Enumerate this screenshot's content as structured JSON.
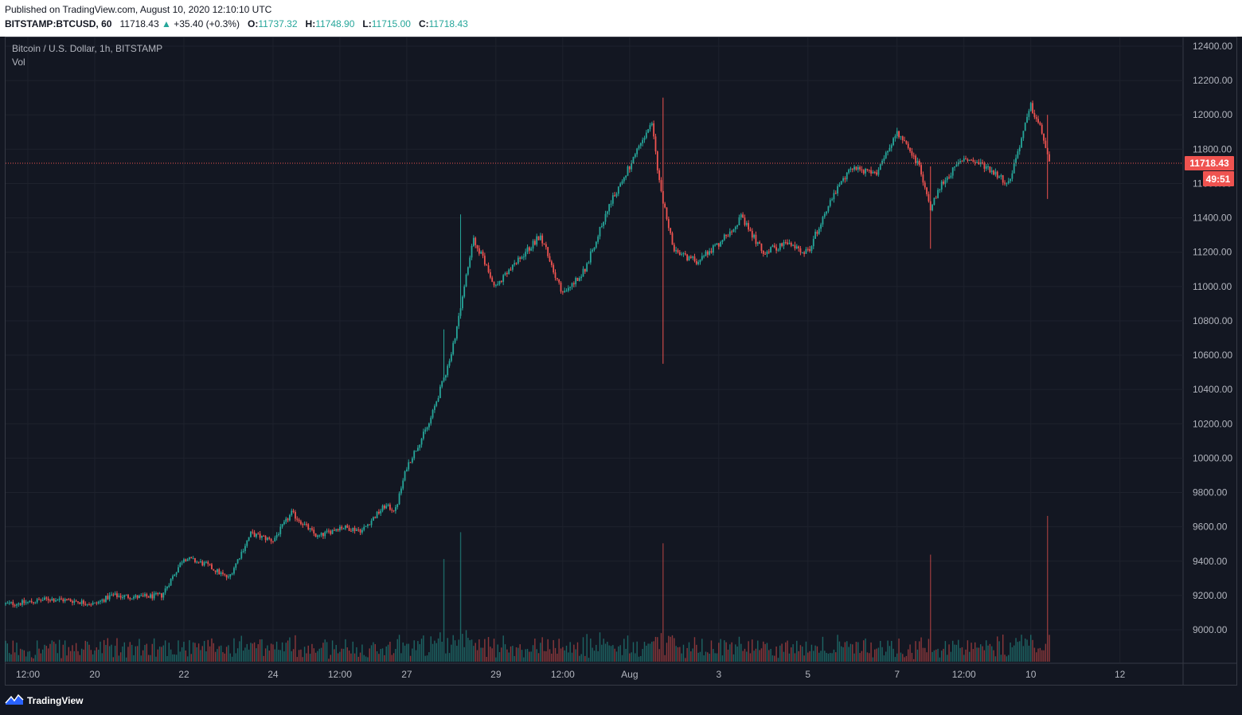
{
  "header": {
    "published": "Published on TradingView.com, August 10, 2020 12:10:10 UTC",
    "symbol_label": "BITSTAMP:BTCUSD, 60",
    "last": "11718.43",
    "change": "+35.40 (+0.3%)",
    "o_label": "O:",
    "o_value": "11737.32",
    "h_label": "H:",
    "h_value": "11748.90",
    "l_label": "L:",
    "l_value": "11715.00",
    "c_label": "C:",
    "c_value": "11718.43"
  },
  "legend": {
    "symbol": "Bitcoin / U.S. Dollar, 1h, BITSTAMP",
    "vol": "Vol"
  },
  "price_badge": "11718.43",
  "countdown_badge": "49:51",
  "footer": {
    "brand": "TradingView"
  },
  "colors": {
    "up": "#26a69a",
    "down": "#ef5350",
    "grid": "#1e222d",
    "background": "#131722",
    "axis_text": "#b2b5be",
    "price_line": "#ef5350"
  },
  "chart_data": {
    "type": "candlestick",
    "title": "Bitcoin / U.S. Dollar, 1h, BITSTAMP",
    "yticks": [
      9000,
      9200,
      9400,
      9600,
      9800,
      10000,
      10200,
      10400,
      10600,
      10800,
      11000,
      11200,
      11400,
      11600,
      11800,
      12000,
      12200,
      12400
    ],
    "ytick_labels": [
      "9000.00",
      "9200.00",
      "9400.00",
      "9600.00",
      "9800.00",
      "10000.00",
      "10200.00",
      "10400.00",
      "10600.00",
      "10800.00",
      "11000.00",
      "11200.00",
      "11400.00",
      "11600.00",
      "11800.00",
      "12000.00",
      "12200.00",
      "12400.00"
    ],
    "ylim": [
      8820,
      12500
    ],
    "xlabels": [
      "12:00",
      "20",
      "22",
      "24",
      "12:00",
      "27",
      "29",
      "12:00",
      "Aug",
      "3",
      "5",
      "7",
      "12:00",
      "10",
      "12"
    ],
    "xlabel_hours": [
      0,
      36,
      84,
      132,
      168,
      204,
      252,
      288,
      324,
      372,
      420,
      468,
      504,
      540,
      588
    ],
    "time_range_hours": [
      -12,
      622
    ],
    "last_price": 11718.43,
    "price_path": [
      [
        -12,
        9150
      ],
      [
        0,
        9160
      ],
      [
        12,
        9180
      ],
      [
        24,
        9170
      ],
      [
        36,
        9150
      ],
      [
        45,
        9200
      ],
      [
        60,
        9190
      ],
      [
        72,
        9200
      ],
      [
        84,
        9420
      ],
      [
        96,
        9380
      ],
      [
        108,
        9300
      ],
      [
        120,
        9560
      ],
      [
        132,
        9520
      ],
      [
        142,
        9680
      ],
      [
        156,
        9540
      ],
      [
        168,
        9600
      ],
      [
        180,
        9580
      ],
      [
        192,
        9720
      ],
      [
        198,
        9700
      ],
      [
        204,
        9950
      ],
      [
        216,
        10200
      ],
      [
        228,
        10600
      ],
      [
        240,
        11280
      ],
      [
        252,
        11000
      ],
      [
        264,
        11150
      ],
      [
        276,
        11300
      ],
      [
        288,
        10950
      ],
      [
        300,
        11100
      ],
      [
        312,
        11450
      ],
      [
        324,
        11700
      ],
      [
        336,
        11950
      ],
      [
        340,
        11600
      ],
      [
        348,
        11200
      ],
      [
        360,
        11150
      ],
      [
        372,
        11250
      ],
      [
        384,
        11400
      ],
      [
        396,
        11200
      ],
      [
        408,
        11250
      ],
      [
        420,
        11200
      ],
      [
        432,
        11500
      ],
      [
        444,
        11700
      ],
      [
        456,
        11650
      ],
      [
        468,
        11900
      ],
      [
        480,
        11700
      ],
      [
        486,
        11450
      ],
      [
        492,
        11600
      ],
      [
        504,
        11750
      ],
      [
        516,
        11700
      ],
      [
        528,
        11600
      ],
      [
        540,
        12050
      ],
      [
        546,
        11900
      ],
      [
        550,
        11718
      ]
    ],
    "spikes": [
      {
        "hour": 224,
        "high": 10750,
        "low": 10500
      },
      {
        "hour": 233,
        "high": 11420,
        "low": 10900
      },
      {
        "hour": 342,
        "high": 12100,
        "low": 10550
      },
      {
        "hour": 486,
        "high": 11700,
        "low": 11220
      },
      {
        "hour": 549,
        "high": 12000,
        "low": 11510
      }
    ]
  }
}
